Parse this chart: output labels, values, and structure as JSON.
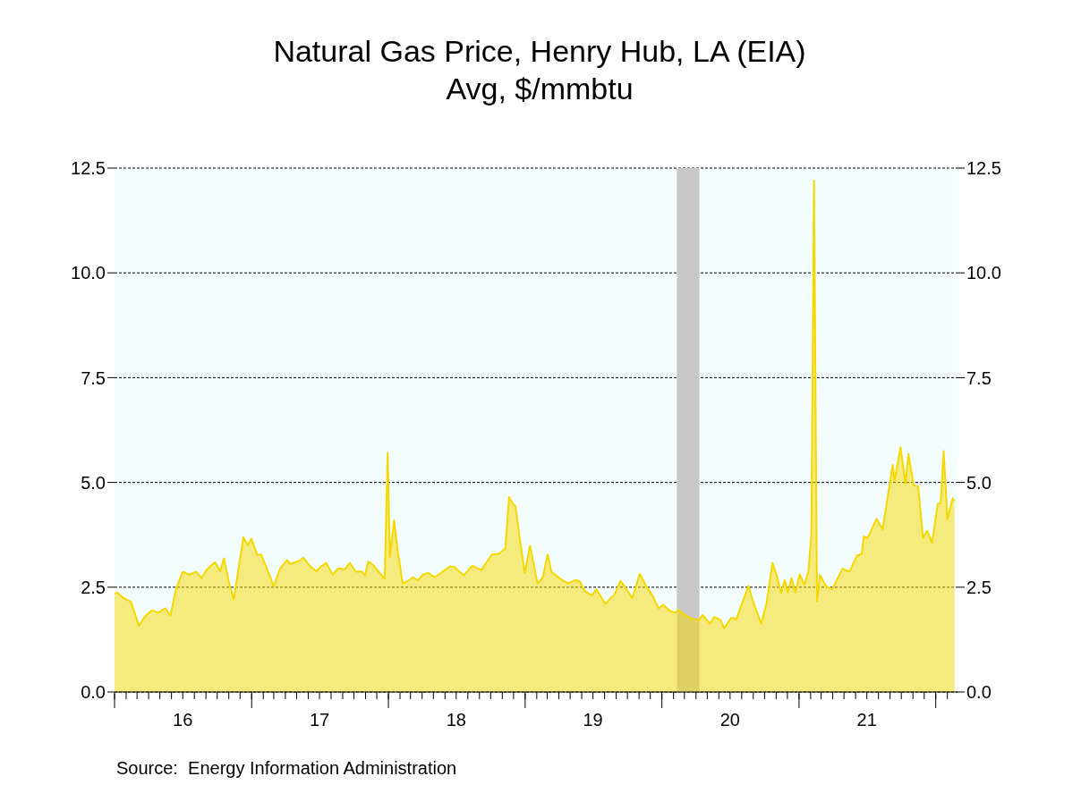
{
  "chart_data": {
    "type": "area",
    "title": "Natural Gas Price, Henry Hub, LA (EIA)",
    "subtitle": "Avg, $/mmbtu",
    "annotations": [
      "Source:  Energy Information Administration"
    ],
    "x": [
      "2016-01-01",
      "2016-01-09",
      "2016-01-25",
      "2016-02-06",
      "2016-02-14",
      "2016-03-06",
      "2016-03-21",
      "2016-04-10",
      "2016-04-26",
      "2016-05-16",
      "2016-05-29",
      "2016-06-13",
      "2016-07-01",
      "2016-07-19",
      "2016-08-06",
      "2016-08-20",
      "2016-09-04",
      "2016-09-25",
      "2016-10-09",
      "2016-10-19",
      "2016-11-02",
      "2016-11-14",
      "2016-12-10",
      "2016-12-22",
      "2016-12-31",
      "2017-01-16",
      "2017-01-26",
      "2017-02-11",
      "2017-03-01",
      "2017-03-18",
      "2017-04-06",
      "2017-04-13",
      "2017-05-05",
      "2017-05-19",
      "2017-06-06",
      "2017-06-23",
      "2017-07-04",
      "2017-07-19",
      "2017-08-05",
      "2017-08-20",
      "2017-09-07",
      "2017-09-20",
      "2017-10-06",
      "2017-10-21",
      "2017-10-31",
      "2017-11-08",
      "2017-11-20",
      "2017-12-22",
      "2017-12-30",
      "2018-01-05",
      "2018-01-16",
      "2018-01-26",
      "2018-02-08",
      "2018-02-24",
      "2018-03-08",
      "2018-03-20",
      "2018-04-03",
      "2018-04-17",
      "2018-05-05",
      "2018-06-15",
      "2018-06-27",
      "2018-07-21",
      "2018-08-13",
      "2018-09-06",
      "2018-10-04",
      "2018-10-24",
      "2018-11-09",
      "2018-11-19",
      "2018-11-30",
      "2018-12-06",
      "2018-12-18",
      "2018-12-31",
      "2019-01-14",
      "2019-02-03",
      "2019-02-17",
      "2019-03-02",
      "2019-03-12",
      "2019-04-05",
      "2019-04-25",
      "2019-05-15",
      "2019-05-27",
      "2019-06-08",
      "2019-06-28",
      "2019-07-10",
      "2019-08-03",
      "2019-08-19",
      "2019-08-27",
      "2019-09-12",
      "2019-09-24",
      "2019-10-14",
      "2019-11-03",
      "2019-11-18",
      "2019-12-08",
      "2019-12-23",
      "2020-01-05",
      "2020-01-21",
      "2020-02-06",
      "2020-02-14",
      "2020-03-01",
      "2020-03-21",
      "2020-04-10",
      "2020-04-18",
      "2020-04-30",
      "2020-05-08",
      "2020-05-20",
      "2020-06-05",
      "2020-06-15",
      "2020-07-04",
      "2020-07-18",
      "2020-08-03",
      "2020-08-19",
      "2020-08-31",
      "2020-09-22",
      "2020-10-06",
      "2020-10-22",
      "2020-11-03",
      "2020-11-14",
      "2020-11-24",
      "2020-12-02",
      "2020-12-12",
      "2020-12-22",
      "2021-01-03",
      "2021-01-15",
      "2021-01-26",
      "2021-02-03",
      "2021-02-10",
      "2021-02-18",
      "2021-02-26",
      "2021-03-14",
      "2021-03-30",
      "2021-04-27",
      "2021-05-16",
      "2021-06-05",
      "2021-06-17",
      "2021-06-23",
      "2021-07-03",
      "2021-07-27",
      "2021-08-12",
      "2021-09-08",
      "2021-09-13",
      "2021-09-29",
      "2021-10-12",
      "2021-10-20",
      "2021-11-03",
      "2021-11-15",
      "2021-11-28",
      "2021-12-09",
      "2021-12-22",
      "2022-01-06",
      "2022-01-14",
      "2022-01-22",
      "2022-02-01",
      "2022-02-15",
      "2022-02-20"
    ],
    "series": [
      {
        "color": "#f5d800",
        "values": [
          2.35,
          2.37,
          2.24,
          2.19,
          2.15,
          1.58,
          1.79,
          1.95,
          1.89,
          2.0,
          1.82,
          2.45,
          2.87,
          2.8,
          2.87,
          2.72,
          2.93,
          3.1,
          2.88,
          3.19,
          2.59,
          2.21,
          3.69,
          3.5,
          3.66,
          3.27,
          3.28,
          2.94,
          2.52,
          2.95,
          3.15,
          3.05,
          3.12,
          3.2,
          3.0,
          2.88,
          2.99,
          3.08,
          2.8,
          2.95,
          2.93,
          3.08,
          2.87,
          2.88,
          2.78,
          3.11,
          3.04,
          2.7,
          5.7,
          3.22,
          4.1,
          3.36,
          2.59,
          2.66,
          2.74,
          2.66,
          2.8,
          2.84,
          2.74,
          3.0,
          2.98,
          2.78,
          3.01,
          2.91,
          3.28,
          3.3,
          3.43,
          4.65,
          4.48,
          4.44,
          3.64,
          2.84,
          3.49,
          2.59,
          2.73,
          3.28,
          2.87,
          2.7,
          2.59,
          2.67,
          2.64,
          2.42,
          2.3,
          2.45,
          2.1,
          2.26,
          2.31,
          2.65,
          2.52,
          2.24,
          2.82,
          2.56,
          2.28,
          2.0,
          2.08,
          1.94,
          1.89,
          1.96,
          1.84,
          1.75,
          1.72,
          1.84,
          1.72,
          1.63,
          1.79,
          1.72,
          1.52,
          1.77,
          1.74,
          2.14,
          2.53,
          2.17,
          1.63,
          2.1,
          3.08,
          2.77,
          2.37,
          2.67,
          2.38,
          2.72,
          2.38,
          2.81,
          2.56,
          2.87,
          3.78,
          12.2,
          2.17,
          2.79,
          2.53,
          2.45,
          2.94,
          2.87,
          3.26,
          3.29,
          3.71,
          3.67,
          4.13,
          3.88,
          5.42,
          5.04,
          5.84,
          4.97,
          5.68,
          4.93,
          4.9,
          3.67,
          3.85,
          3.56,
          4.48,
          4.51,
          5.75,
          4.13,
          4.62,
          4.56
        ]
      }
    ],
    "xlim": [
      "2016-01-01",
      "2022-02-28"
    ],
    "xticks": [
      {
        "value": "2016-01-01",
        "label": null
      },
      {
        "value": "2016-02-01",
        "label": null
      },
      {
        "value": "2016-03-01",
        "label": null
      },
      {
        "value": "2016-04-01",
        "label": null
      },
      {
        "value": "2016-05-01",
        "label": null
      },
      {
        "value": "2016-06-01",
        "label": null
      },
      {
        "value": "2016-07-01",
        "label": "16"
      },
      {
        "value": "2016-08-01",
        "label": null
      },
      {
        "value": "2016-09-01",
        "label": null
      },
      {
        "value": "2016-10-01",
        "label": null
      },
      {
        "value": "2016-11-01",
        "label": null
      },
      {
        "value": "2016-12-01",
        "label": null
      },
      {
        "value": "2017-01-01",
        "label": null
      },
      {
        "value": "2017-02-01",
        "label": null
      },
      {
        "value": "2017-03-01",
        "label": null
      },
      {
        "value": "2017-04-01",
        "label": null
      },
      {
        "value": "2017-05-01",
        "label": null
      },
      {
        "value": "2017-06-01",
        "label": null
      },
      {
        "value": "2017-07-01",
        "label": "17"
      },
      {
        "value": "2017-08-01",
        "label": null
      },
      {
        "value": "2017-09-01",
        "label": null
      },
      {
        "value": "2017-10-01",
        "label": null
      },
      {
        "value": "2017-11-01",
        "label": null
      },
      {
        "value": "2017-12-01",
        "label": null
      },
      {
        "value": "2018-01-01",
        "label": null
      },
      {
        "value": "2018-02-01",
        "label": null
      },
      {
        "value": "2018-03-01",
        "label": null
      },
      {
        "value": "2018-04-01",
        "label": null
      },
      {
        "value": "2018-05-01",
        "label": null
      },
      {
        "value": "2018-06-01",
        "label": null
      },
      {
        "value": "2018-07-01",
        "label": "18"
      },
      {
        "value": "2018-08-01",
        "label": null
      },
      {
        "value": "2018-09-01",
        "label": null
      },
      {
        "value": "2018-10-01",
        "label": null
      },
      {
        "value": "2018-11-01",
        "label": null
      },
      {
        "value": "2018-12-01",
        "label": null
      },
      {
        "value": "2019-01-01",
        "label": null
      },
      {
        "value": "2019-02-01",
        "label": null
      },
      {
        "value": "2019-03-01",
        "label": null
      },
      {
        "value": "2019-04-01",
        "label": null
      },
      {
        "value": "2019-05-01",
        "label": null
      },
      {
        "value": "2019-06-01",
        "label": null
      },
      {
        "value": "2019-07-01",
        "label": "19"
      },
      {
        "value": "2019-08-01",
        "label": null
      },
      {
        "value": "2019-09-01",
        "label": null
      },
      {
        "value": "2019-10-01",
        "label": null
      },
      {
        "value": "2019-11-01",
        "label": null
      },
      {
        "value": "2019-12-01",
        "label": null
      },
      {
        "value": "2020-01-01",
        "label": null
      },
      {
        "value": "2020-02-01",
        "label": null
      },
      {
        "value": "2020-03-01",
        "label": null
      },
      {
        "value": "2020-04-01",
        "label": null
      },
      {
        "value": "2020-05-01",
        "label": null
      },
      {
        "value": "2020-06-01",
        "label": null
      },
      {
        "value": "2020-07-01",
        "label": "20"
      },
      {
        "value": "2020-08-01",
        "label": null
      },
      {
        "value": "2020-09-01",
        "label": null
      },
      {
        "value": "2020-10-01",
        "label": null
      },
      {
        "value": "2020-11-01",
        "label": null
      },
      {
        "value": "2020-12-01",
        "label": null
      },
      {
        "value": "2021-01-01",
        "label": null
      },
      {
        "value": "2021-02-01",
        "label": null
      },
      {
        "value": "2021-03-01",
        "label": null
      },
      {
        "value": "2021-04-01",
        "label": null
      },
      {
        "value": "2021-05-01",
        "label": null
      },
      {
        "value": "2021-06-01",
        "label": null
      },
      {
        "value": "2021-07-01",
        "label": "21"
      },
      {
        "value": "2021-08-01",
        "label": null
      },
      {
        "value": "2021-09-01",
        "label": null
      },
      {
        "value": "2021-10-01",
        "label": null
      },
      {
        "value": "2021-11-01",
        "label": null
      },
      {
        "value": "2021-12-01",
        "label": null
      },
      {
        "value": "2022-01-01",
        "label": null
      },
      {
        "value": "2022-02-01",
        "label": null
      }
    ],
    "ylim": [
      0,
      12.5
    ],
    "yticks": [
      {
        "value": 0,
        "label": "0.0"
      },
      2.5,
      {
        "value": 5,
        "label": "5.0"
      },
      7.5,
      {
        "value": 10,
        "label": "10.0"
      },
      12.5
    ],
    "y2lim": [
      0,
      12.5
    ],
    "y2ticks": [
      {
        "value": 0,
        "label": "0.0"
      },
      2.5,
      {
        "value": 5,
        "label": "5.0"
      },
      7.5,
      {
        "value": 10,
        "label": "10.0"
      },
      12.5
    ],
    "bands": [
      {
        "axis": "x",
        "from": "2020-02-10",
        "to": "2020-04-10",
        "color": "#c8c8c8"
      }
    ],
    "grid": "y",
    "line_style": "solid"
  }
}
